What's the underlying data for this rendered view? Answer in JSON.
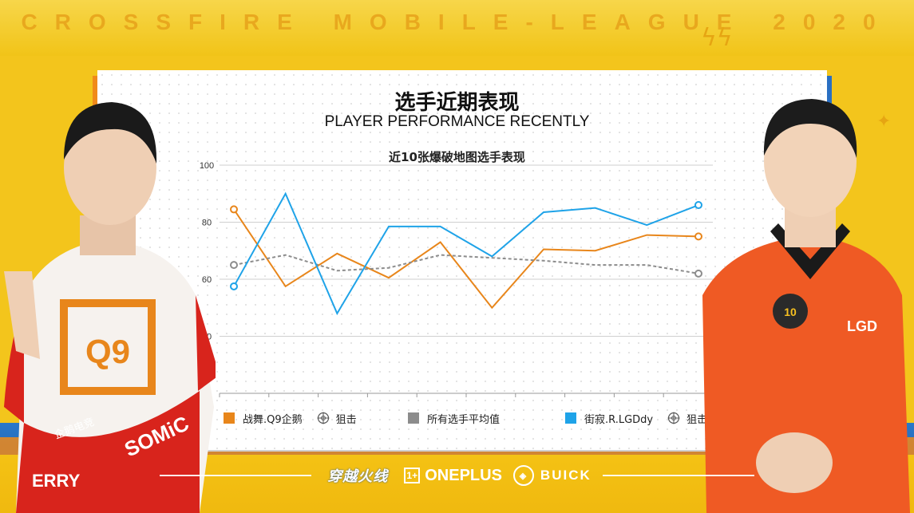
{
  "banner": {
    "text": "CROSSFIRE MOBILE-LEAGUE 2020"
  },
  "header": {
    "title_cn": "选手近期表现",
    "title_en": "PLAYER PERFORMANCE RECENTLY"
  },
  "chart_data": {
    "type": "line",
    "title": "近10张爆破地图选手表现",
    "xlabel": "",
    "ylabel": "",
    "ylim": [
      20,
      100
    ],
    "yticks": [
      100,
      80,
      60,
      40
    ],
    "ytick_labels": [
      "100",
      "80",
      "60",
      "40"
    ],
    "x": [
      1,
      2,
      3,
      4,
      5,
      6,
      7,
      8,
      9,
      10
    ],
    "grid": true,
    "legend_position": "bottom",
    "series": [
      {
        "name": "战舞.Q9企鹅",
        "role": "狙击",
        "color": "#e8861b",
        "dash": "solid",
        "values": [
          84.5,
          57.5,
          69.0,
          60.5,
          73.0,
          50.0,
          70.5,
          70.0,
          75.5,
          75.0
        ]
      },
      {
        "name": "所有选手平均值",
        "role": "",
        "color": "#8c8c8c",
        "dash": "dashed",
        "values": [
          65.0,
          68.5,
          63.0,
          64.0,
          68.5,
          67.5,
          66.5,
          65.0,
          65.0,
          62.0
        ]
      },
      {
        "name": "街寂.R.LGDdy",
        "role": "狙击",
        "color": "#1fa3e8",
        "dash": "solid",
        "values": [
          57.5,
          90.0,
          48.0,
          78.5,
          78.5,
          68.0,
          83.5,
          85.0,
          79.0,
          86.0
        ]
      }
    ]
  },
  "legend": {
    "items": [
      {
        "label": "战舞.Q9企鹅",
        "color": "#e8861b",
        "role_label": "狙击",
        "role_icon": "crosshair-icon"
      },
      {
        "label": "所有选手平均值",
        "color": "#8c8c8c"
      },
      {
        "label": "街寂.R.LGDdy",
        "color": "#1fa3e8",
        "role_label": "狙击",
        "role_icon": "crosshair-icon"
      }
    ]
  },
  "sponsors": {
    "game": "穿越火线",
    "oneplus": "ONEPLUS",
    "oneplus_mark": "1+",
    "buick": "BUICK"
  },
  "players": {
    "left_team_logo": "Q9",
    "left_sponsor_text": "SOMiC",
    "left_sponsor_text_2": "企鹅电竞",
    "left_sponsor_text_3": "ERRY",
    "right_team_badge": "10",
    "right_team_logo": "LGD"
  },
  "colors": {
    "background": "#f3c51c",
    "accent_orange": "#e8861b",
    "accent_blue": "#1fa3e8"
  }
}
